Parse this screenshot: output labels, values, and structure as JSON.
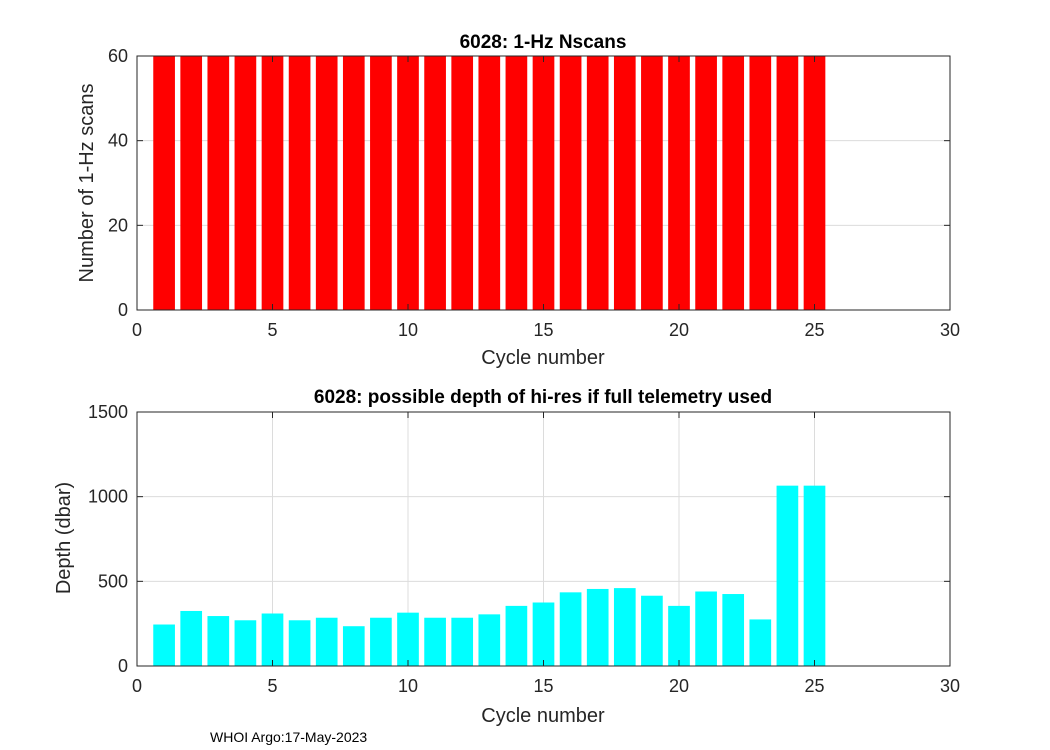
{
  "footer_text": "WHOI Argo:17-May-2023",
  "chart_data": [
    {
      "type": "bar",
      "title": "6028: 1-Hz Nscans",
      "xlabel": "Cycle number",
      "ylabel": "Number of 1-Hz scans",
      "x": [
        1,
        2,
        3,
        4,
        5,
        6,
        7,
        8,
        9,
        10,
        11,
        12,
        13,
        14,
        15,
        16,
        17,
        18,
        19,
        20,
        21,
        22,
        23,
        24,
        25
      ],
      "values": [
        60,
        60,
        60,
        60,
        60,
        60,
        60,
        60,
        60,
        60,
        60,
        60,
        60,
        60,
        60,
        60,
        60,
        60,
        60,
        60,
        60,
        60,
        60,
        60,
        60
      ],
      "xlim": [
        0,
        30
      ],
      "ylim": [
        0,
        60
      ],
      "xticks": [
        0,
        5,
        10,
        15,
        20,
        25,
        30
      ],
      "yticks": [
        0,
        20,
        40,
        60
      ],
      "grid": true,
      "bar_color": "#ff0000"
    },
    {
      "type": "bar",
      "title": "6028: possible depth of hi-res if full telemetry used",
      "xlabel": "Cycle number",
      "ylabel": "Depth (dbar)",
      "x": [
        1,
        2,
        3,
        4,
        5,
        6,
        7,
        8,
        9,
        10,
        11,
        12,
        13,
        14,
        15,
        16,
        17,
        18,
        19,
        20,
        21,
        22,
        23,
        24,
        25
      ],
      "values": [
        245,
        325,
        295,
        270,
        310,
        270,
        285,
        235,
        285,
        315,
        285,
        285,
        305,
        355,
        375,
        435,
        455,
        460,
        415,
        355,
        440,
        425,
        275,
        1065,
        1065
      ],
      "xlim": [
        0,
        30
      ],
      "ylim": [
        0,
        1500
      ],
      "xticks": [
        0,
        5,
        10,
        15,
        20,
        25,
        30
      ],
      "yticks": [
        0,
        500,
        1000,
        1500
      ],
      "grid": true,
      "bar_color": "#00ffff"
    }
  ]
}
